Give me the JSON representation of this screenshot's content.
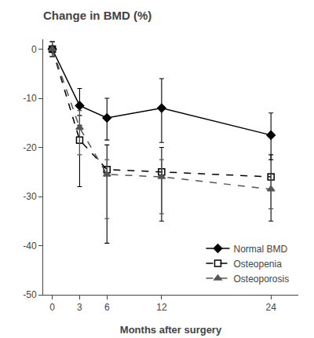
{
  "chart_data": {
    "type": "line",
    "title": "Change in BMD (%)",
    "xlabel": "Months after surgery",
    "x": [
      0,
      3,
      6,
      12,
      24
    ],
    "xlim": [
      -1,
      27
    ],
    "ylim": [
      -50,
      2
    ],
    "xticks": [
      0,
      3,
      6,
      12,
      24
    ],
    "yticks": [
      -50,
      -40,
      -30,
      -20,
      -10,
      0
    ],
    "grid": false,
    "legend": "lower right",
    "series": [
      {
        "name": "Normal BMD",
        "color": "#000000",
        "marker": "diamond",
        "line_style": "solid",
        "values": [
          0,
          -11.5,
          -14.0,
          -12.0,
          -17.5
        ],
        "yerr_low": [
          1.5,
          4.0,
          4.5,
          7.0,
          5.0
        ],
        "yerr_high": [
          1.5,
          3.5,
          4.0,
          6.0,
          4.5
        ]
      },
      {
        "name": "Osteopenia",
        "color": "#000000",
        "marker": "square-open",
        "line_style": "dashed",
        "values": [
          0,
          -18.5,
          -24.5,
          -25.0,
          -26.0
        ],
        "yerr_low": [
          1.5,
          9.5,
          15.0,
          10.0,
          9.0
        ],
        "yerr_high": [
          1.5,
          5.0,
          5.0,
          5.0,
          4.5
        ]
      },
      {
        "name": "Osteoporosis",
        "color": "#555555",
        "marker": "triangle-up",
        "line_style": "dashed",
        "values": [
          0,
          -16.0,
          -25.5,
          -26.0,
          -28.5
        ],
        "yerr_low": [
          1.5,
          5.5,
          9.0,
          7.5,
          4.0
        ],
        "yerr_high": [
          1.5,
          3.5,
          3.0,
          3.5,
          3.0
        ]
      }
    ]
  }
}
